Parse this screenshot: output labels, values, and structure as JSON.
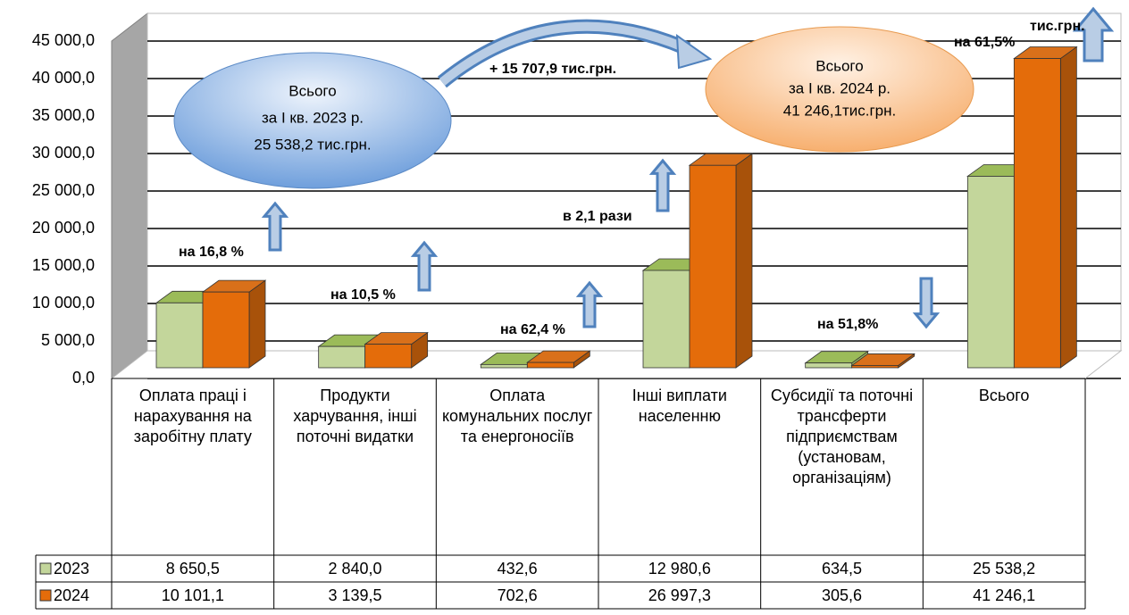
{
  "chart_data": {
    "type": "bar3d",
    "categories": [
      "Оплата праці і нарахування на заробітну плату",
      "Продукти харчування, інші поточні видатки",
      "Оплата комунальних послуг та енергоносіїв",
      "Інші виплати населенню",
      "Субсидії та поточні трансферти підприємствам (установам, організаціям)",
      "Всього"
    ],
    "series": [
      {
        "name": "2023",
        "color": "#c3d69b",
        "values": [
          8650.5,
          2840.0,
          432.6,
          12980.6,
          634.5,
          25538.2
        ],
        "value_labels": [
          "8 650,5",
          "2 840,0",
          "432,6",
          "12 980,6",
          "634,5",
          "25 538,2"
        ]
      },
      {
        "name": "2024",
        "color": "#e46c0a",
        "values": [
          10101.1,
          3139.5,
          702.6,
          26997.3,
          305.6,
          41246.1
        ],
        "value_labels": [
          "10 101,1",
          "3 139,5",
          "702,6",
          "26 997,3",
          "305,6",
          "41 246,1"
        ]
      }
    ],
    "ylim": [
      0,
      45000
    ],
    "yticks": [
      {
        "value": 0,
        "label": "0,0"
      },
      {
        "value": 5000,
        "label": "5 000,0"
      },
      {
        "value": 10000,
        "label": "10 000,0"
      },
      {
        "value": 15000,
        "label": "15 000,0"
      },
      {
        "value": 20000,
        "label": "20 000,0"
      },
      {
        "value": 25000,
        "label": "25 000,0"
      },
      {
        "value": 30000,
        "label": "30 000,0"
      },
      {
        "value": 35000,
        "label": "35 000,0"
      },
      {
        "value": 40000,
        "label": "40 000,0"
      },
      {
        "value": 45000,
        "label": "45 000,0"
      }
    ],
    "grid": true,
    "annotations": [
      "на 16,8 %",
      "на 10,5 %",
      "на 62,4 %",
      "в 2,1 рази",
      "на 51,8%",
      "на 61,5%",
      "тис.грн.",
      "+ 15 707,9 тис.грн."
    ],
    "ellipses": [
      {
        "lines": [
          "Всього",
          "за I кв. 2023 р.",
          "25 538,2 тис.грн."
        ]
      },
      {
        "lines": [
          "Всього",
          "за I кв. 2024 р.",
          "41 246,1тис.грн."
        ]
      }
    ]
  }
}
